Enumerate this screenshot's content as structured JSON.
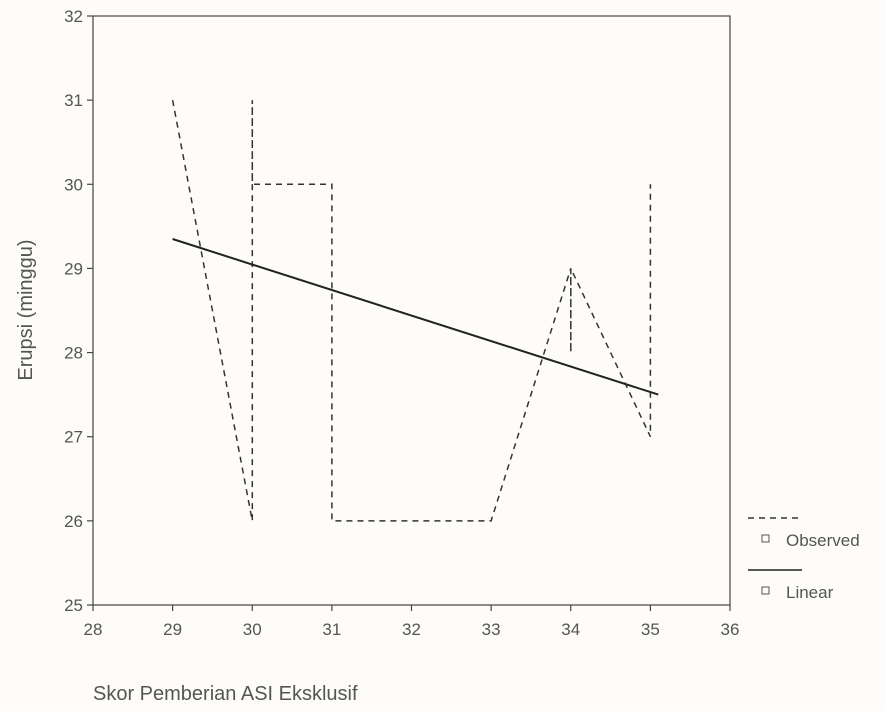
{
  "chart_data": {
    "type": "line",
    "title": "",
    "xlabel": "Skor Pemberian  ASI Eksklusif",
    "ylabel": "Erupsi (minggu)",
    "xlim": [
      28,
      36
    ],
    "ylim": [
      25,
      32
    ],
    "xticks": [
      28,
      29,
      30,
      31,
      32,
      33,
      34,
      35,
      36
    ],
    "yticks": [
      25,
      26,
      27,
      28,
      29,
      30,
      31,
      32
    ],
    "grid": false,
    "legend_position": "bottom-right",
    "series": [
      {
        "name": "Observed",
        "style": "dashed",
        "color": "#333333",
        "x": [
          29,
          30,
          30,
          30,
          31,
          31,
          33,
          34,
          34,
          34,
          35,
          35
        ],
        "y": [
          31,
          26,
          31,
          30,
          30,
          26,
          26,
          29,
          28,
          29,
          27,
          30
        ]
      },
      {
        "name": "Linear",
        "style": "solid",
        "color": "#222222",
        "x": [
          29,
          35.1
        ],
        "y": [
          29.35,
          27.5
        ]
      }
    ]
  }
}
